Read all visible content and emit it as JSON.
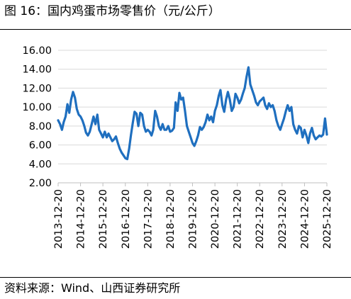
{
  "figure": {
    "title": "图 16：国内鸡蛋市场零售价（元/公斤）",
    "source": "资料来源：Wind、山西证券研究所"
  },
  "chart_data": {
    "type": "line",
    "title": "",
    "xlabel": "",
    "ylabel": "",
    "ylim": [
      2,
      16
    ],
    "y_ticks": [
      "2.00",
      "4.00",
      "6.00",
      "8.00",
      "10.00",
      "12.00",
      "14.00",
      "16.00"
    ],
    "x_ticks": [
      "2013-12-20",
      "2014-12-20",
      "2015-12-20",
      "2016-12-20",
      "2017-12-20",
      "2018-12-20",
      "2019-12-20",
      "2020-12-20",
      "2021-12-20",
      "2022-12-20",
      "2023-12-20",
      "2024-12-20",
      "2025-12-20"
    ],
    "grid": "horizontal",
    "legend": "none",
    "series_color": "#1f6fbf",
    "series": [
      {
        "name": "",
        "x": [
          "2013-12-20",
          "2014-01-20",
          "2014-02-20",
          "2014-03-20",
          "2014-04-20",
          "2014-05-20",
          "2014-06-20",
          "2014-07-20",
          "2014-08-20",
          "2014-09-20",
          "2014-10-20",
          "2014-11-20",
          "2014-12-20",
          "2015-01-20",
          "2015-02-20",
          "2015-03-20",
          "2015-04-20",
          "2015-05-20",
          "2015-06-20",
          "2015-07-20",
          "2015-08-20",
          "2015-09-20",
          "2015-10-20",
          "2015-11-20",
          "2015-12-20",
          "2016-01-20",
          "2016-02-20",
          "2016-03-20",
          "2016-04-20",
          "2016-05-20",
          "2016-06-20",
          "2016-07-20",
          "2016-08-20",
          "2016-09-20",
          "2016-10-20",
          "2016-11-20",
          "2016-12-20",
          "2017-01-20",
          "2017-02-20",
          "2017-03-20",
          "2017-04-20",
          "2017-05-20",
          "2017-06-20",
          "2017-07-20",
          "2017-08-20",
          "2017-09-20",
          "2017-10-20",
          "2017-11-20",
          "2017-12-20",
          "2018-01-20",
          "2018-02-20",
          "2018-03-20",
          "2018-04-20",
          "2018-05-20",
          "2018-06-20",
          "2018-07-20",
          "2018-08-20",
          "2018-09-20",
          "2018-10-20",
          "2018-11-20",
          "2018-12-20",
          "2019-01-20",
          "2019-02-20",
          "2019-03-20",
          "2019-04-20",
          "2019-05-20",
          "2019-06-20",
          "2019-07-20",
          "2019-08-20",
          "2019-09-20",
          "2019-10-20",
          "2019-11-20",
          "2019-12-20",
          "2020-01-20",
          "2020-02-20",
          "2020-03-20",
          "2020-04-20",
          "2020-05-20",
          "2020-06-20",
          "2020-07-20",
          "2020-08-20",
          "2020-09-20",
          "2020-10-20",
          "2020-11-20",
          "2020-12-20",
          "2021-01-20",
          "2021-02-20",
          "2021-03-20",
          "2021-04-20",
          "2021-05-20",
          "2021-06-20",
          "2021-07-20",
          "2021-08-20",
          "2021-09-20",
          "2021-10-20",
          "2021-11-20",
          "2021-12-20",
          "2022-01-20",
          "2022-02-20",
          "2022-03-20",
          "2022-04-20",
          "2022-05-20",
          "2022-06-20",
          "2022-07-20",
          "2022-08-20",
          "2022-09-20",
          "2022-10-20",
          "2022-11-20",
          "2022-12-20",
          "2023-01-20",
          "2023-02-20",
          "2023-03-20",
          "2023-04-20",
          "2023-05-20",
          "2023-06-20",
          "2023-07-20",
          "2023-08-20",
          "2023-09-20",
          "2023-10-20",
          "2023-11-20",
          "2023-12-20",
          "2024-01-20",
          "2024-02-20",
          "2024-03-20",
          "2024-04-20",
          "2024-05-20",
          "2024-06-20",
          "2024-07-20",
          "2024-08-20",
          "2024-09-20",
          "2024-10-20",
          "2024-11-20",
          "2024-12-20",
          "2025-01-20",
          "2025-02-20",
          "2025-03-20",
          "2025-04-20",
          "2025-05-20",
          "2025-06-20",
          "2025-07-20",
          "2025-08-20",
          "2025-09-20",
          "2025-10-20",
          "2025-11-20",
          "2025-12-20"
        ],
        "values": [
          8.6,
          8.2,
          7.6,
          8.4,
          9.0,
          10.3,
          9.4,
          10.8,
          11.6,
          11.0,
          9.8,
          9.2,
          9.0,
          8.6,
          8.0,
          7.3,
          7.0,
          7.4,
          8.2,
          9.0,
          8.2,
          9.2,
          7.6,
          7.2,
          6.8,
          7.4,
          6.8,
          7.2,
          6.8,
          6.4,
          6.6,
          6.9,
          6.2,
          5.6,
          5.2,
          4.9,
          4.6,
          4.5,
          5.6,
          7.0,
          8.3,
          9.5,
          9.3,
          8.0,
          9.4,
          9.2,
          8.0,
          7.4,
          7.6,
          7.4,
          7.0,
          7.6,
          9.6,
          9.0,
          8.0,
          7.6,
          8.2,
          7.6,
          7.6,
          8.0,
          7.4,
          7.5,
          7.8,
          10.5,
          9.6,
          11.5,
          10.8,
          11.0,
          9.6,
          8.0,
          7.4,
          6.8,
          6.2,
          5.9,
          6.4,
          7.0,
          7.9,
          7.6,
          7.9,
          8.4,
          9.2,
          8.6,
          9.0,
          8.4,
          9.6,
          10.2,
          11.2,
          11.8,
          10.2,
          9.5,
          10.8,
          11.6,
          10.8,
          9.6,
          10.0,
          11.4,
          11.0,
          10.4,
          10.8,
          11.4,
          12.0,
          13.2,
          14.2,
          12.4,
          11.8,
          11.2,
          10.5,
          10.2,
          10.6,
          10.8,
          11.0,
          10.2,
          9.8,
          10.4,
          10.0,
          10.2,
          9.6,
          8.6,
          8.0,
          7.6,
          8.2,
          8.8,
          9.6,
          10.2,
          9.6,
          10.0,
          8.2,
          7.6,
          7.2,
          8.0,
          7.8,
          6.8,
          7.6,
          7.0,
          6.2,
          7.2,
          7.8,
          7.0,
          6.6,
          6.8,
          7.0,
          6.9,
          7.1,
          8.8,
          7.1
        ]
      }
    ]
  }
}
